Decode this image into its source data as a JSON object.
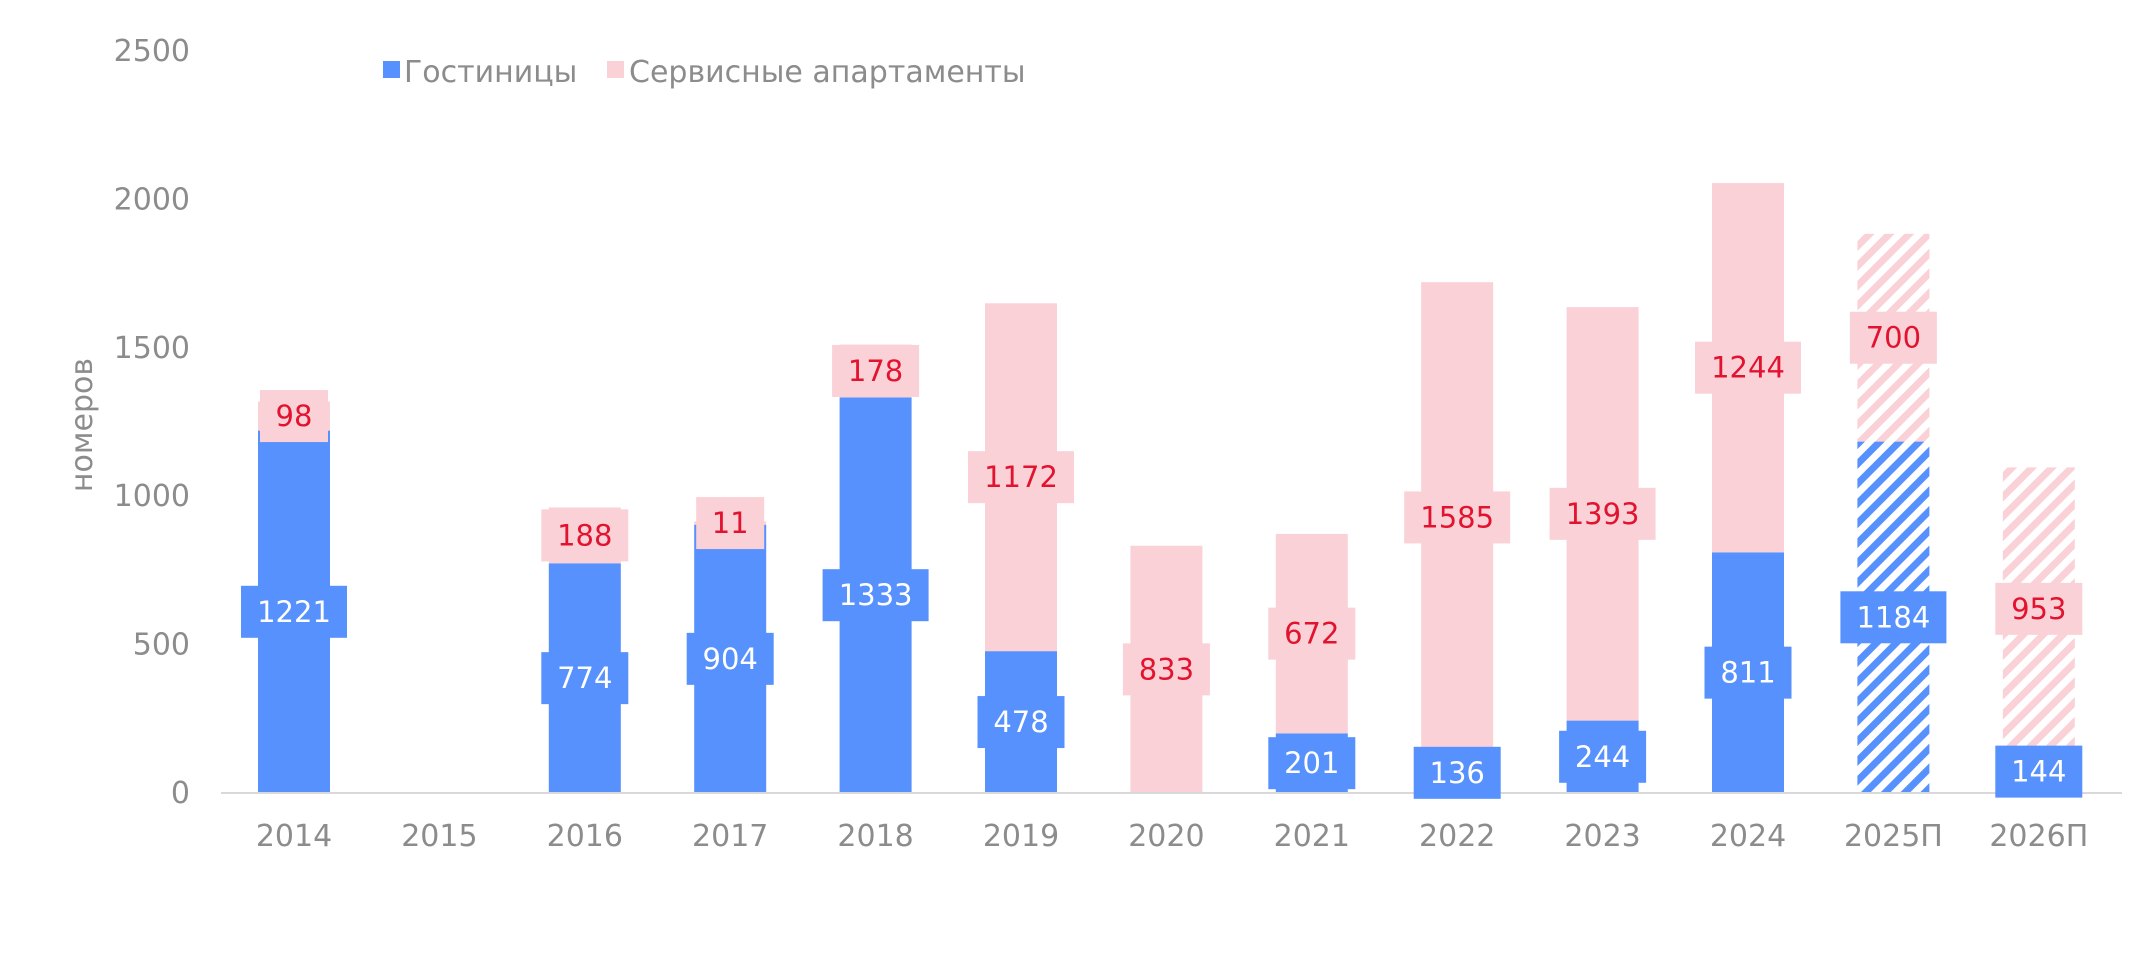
{
  "chart_data": {
    "type": "bar",
    "stacked": true,
    "ylabel": "номеров",
    "ylim": [
      0,
      2500
    ],
    "yticks": [
      0,
      500,
      1000,
      1500,
      2000,
      2500
    ],
    "grid": false,
    "legend_position": "top",
    "categories": [
      "2014",
      "2015",
      "2016",
      "2017",
      "2018",
      "2019",
      "2020",
      "2021",
      "2022",
      "2023",
      "2024",
      "2025П",
      "2026П"
    ],
    "forecast_categories": [
      "2025П",
      "2026П"
    ],
    "series": [
      {
        "name": "Гостиницы",
        "color": "#5791fe",
        "label_text_color": "#ffffff",
        "values": [
          1221,
          null,
          774,
          904,
          1333,
          478,
          null,
          201,
          136,
          244,
          811,
          1184,
          144
        ]
      },
      {
        "name": "Сервисные апартаменты",
        "color": "#fad1d7",
        "label_text_color": "#e2132f",
        "values": [
          98,
          null,
          188,
          11,
          178,
          1172,
          833,
          672,
          1585,
          1393,
          1244,
          700,
          953
        ]
      }
    ]
  }
}
